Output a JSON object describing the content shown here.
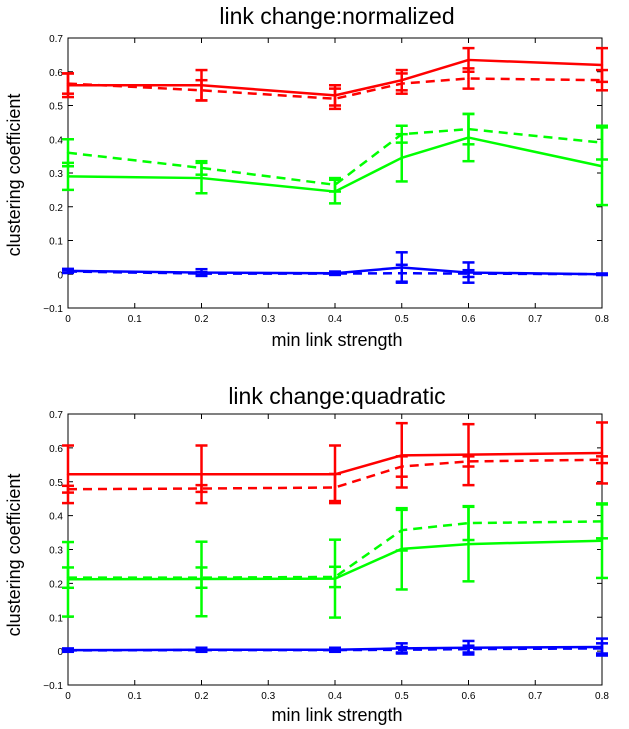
{
  "chart_data": [
    {
      "type": "line",
      "title": "link change:normalized",
      "xlabel": "min link strength",
      "ylabel": "clustering coefficient",
      "xlim": [
        0,
        0.8
      ],
      "ylim": [
        -0.1,
        0.7
      ],
      "x_ticks": [
        "0",
        "0.1",
        "0.2",
        "0.3",
        "0.4",
        "0.5",
        "0.6",
        "0.7",
        "0.8"
      ],
      "y_ticks": [
        "−0.1",
        "0",
        "0.1",
        "0.2",
        "0.3",
        "0.4",
        "0.5",
        "0.6",
        "0.7"
      ],
      "grid": false,
      "series": [
        {
          "color": "#ff0000",
          "dash": false,
          "x": [
            0,
            0.2,
            0.4,
            0.5,
            0.6,
            0.8
          ],
          "y": [
            0.56,
            0.56,
            0.53,
            0.575,
            0.635,
            0.62
          ],
          "err": [
            0.035,
            0.045,
            0.03,
            0.03,
            0.035,
            0.05
          ]
        },
        {
          "color": "#ff0000",
          "dash": true,
          "x": [
            0,
            0.2,
            0.4,
            0.5,
            0.6,
            0.8
          ],
          "y": [
            0.565,
            0.545,
            0.52,
            0.565,
            0.58,
            0.575
          ],
          "err": [
            0.03,
            0.03,
            0.03,
            0.03,
            0.03,
            0.03
          ]
        },
        {
          "color": "#00ff00",
          "dash": false,
          "x": [
            0,
            0.2,
            0.4,
            0.5,
            0.6,
            0.8
          ],
          "y": [
            0.29,
            0.285,
            0.245,
            0.345,
            0.405,
            0.32
          ],
          "err": [
            0.04,
            0.045,
            0.035,
            0.07,
            0.07,
            0.115
          ]
        },
        {
          "color": "#00ff00",
          "dash": true,
          "x": [
            0,
            0.2,
            0.4,
            0.5,
            0.6,
            0.8
          ],
          "y": [
            0.36,
            0.315,
            0.265,
            0.415,
            0.43,
            0.39
          ],
          "err": [
            0.04,
            0.02,
            0.02,
            0.025,
            0.045,
            0.05
          ]
        },
        {
          "color": "#0000ff",
          "dash": false,
          "x": [
            0,
            0.2,
            0.4,
            0.5,
            0.6,
            0.8
          ],
          "y": [
            0.01,
            0.005,
            0.003,
            0.02,
            0.005,
            0.0
          ],
          "err": [
            0.006,
            0.01,
            0.005,
            0.045,
            0.03,
            0.002
          ]
        },
        {
          "color": "#0000ff",
          "dash": true,
          "x": [
            0,
            0.2,
            0.4,
            0.5,
            0.6,
            0.8
          ],
          "y": [
            0.008,
            0.002,
            0.002,
            0.003,
            0.002,
            0.0
          ],
          "err": [
            0.004,
            0.004,
            0.003,
            0.025,
            0.01,
            0.002
          ]
        }
      ]
    },
    {
      "type": "line",
      "title": "link change:quadratic",
      "xlabel": "min link strength",
      "ylabel": "clustering coefficient",
      "xlim": [
        0,
        0.8
      ],
      "ylim": [
        -0.1,
        0.7
      ],
      "x_ticks": [
        "0",
        "0.1",
        "0.2",
        "0.3",
        "0.4",
        "0.5",
        "0.6",
        "0.7",
        "0.8"
      ],
      "y_ticks": [
        "−0.1",
        "0",
        "0.1",
        "0.2",
        "0.3",
        "0.4",
        "0.5",
        "0.6",
        "0.7"
      ],
      "grid": false,
      "series": [
        {
          "color": "#ff0000",
          "dash": false,
          "x": [
            0,
            0.2,
            0.4,
            0.5,
            0.6,
            0.8
          ],
          "y": [
            0.522,
            0.522,
            0.522,
            0.578,
            0.58,
            0.585
          ],
          "err": [
            0.085,
            0.085,
            0.085,
            0.095,
            0.09,
            0.09
          ]
        },
        {
          "color": "#ff0000",
          "dash": true,
          "x": [
            0,
            0.2,
            0.4,
            0.5,
            0.6,
            0.8
          ],
          "y": [
            0.478,
            0.48,
            0.483,
            0.545,
            0.56,
            0.565
          ],
          "err": [
            0.01,
            0.01,
            0.04,
            0.03,
            0.015,
            0.01
          ]
        },
        {
          "color": "#00ff00",
          "dash": false,
          "x": [
            0,
            0.2,
            0.4,
            0.5,
            0.6,
            0.8
          ],
          "y": [
            0.212,
            0.213,
            0.214,
            0.302,
            0.316,
            0.326
          ],
          "err": [
            0.11,
            0.11,
            0.115,
            0.12,
            0.11,
            0.11
          ]
        },
        {
          "color": "#00ff00",
          "dash": true,
          "x": [
            0,
            0.2,
            0.4,
            0.5,
            0.6,
            0.8
          ],
          "y": [
            0.217,
            0.217,
            0.219,
            0.357,
            0.378,
            0.383
          ],
          "err": [
            0.03,
            0.03,
            0.03,
            0.06,
            0.05,
            0.05
          ]
        },
        {
          "color": "#0000ff",
          "dash": false,
          "x": [
            0,
            0.2,
            0.4,
            0.5,
            0.6,
            0.8
          ],
          "y": [
            0.003,
            0.004,
            0.004,
            0.008,
            0.01,
            0.012
          ],
          "err": [
            0.005,
            0.006,
            0.006,
            0.015,
            0.02,
            0.025
          ]
        },
        {
          "color": "#0000ff",
          "dash": true,
          "x": [
            0,
            0.2,
            0.4,
            0.5,
            0.6,
            0.8
          ],
          "y": [
            0.002,
            0.003,
            0.003,
            0.004,
            0.006,
            0.008
          ],
          "err": [
            0.003,
            0.004,
            0.004,
            0.008,
            0.01,
            0.015
          ]
        }
      ]
    }
  ]
}
